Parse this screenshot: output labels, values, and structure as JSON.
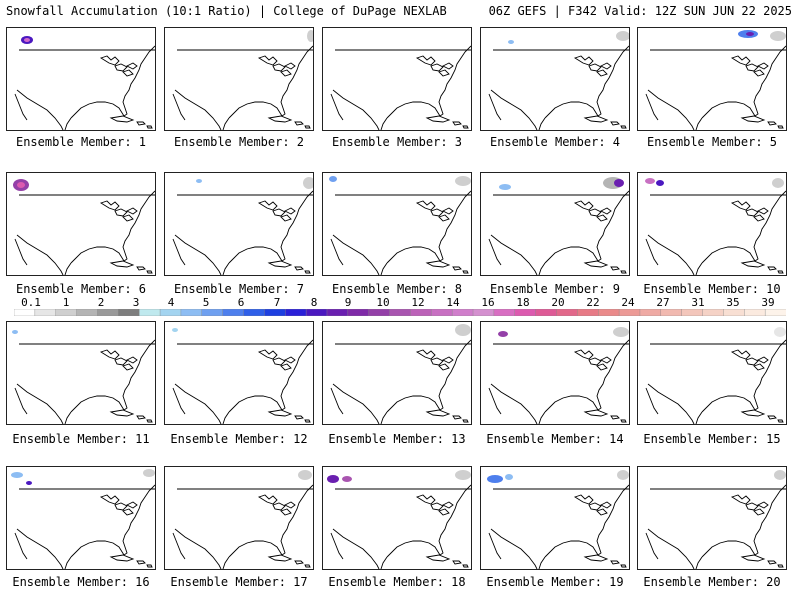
{
  "header": {
    "left": "Snowfall Accumulation (10:1 Ratio) | College of DuPage NEXLAB",
    "right": "06Z GEFS | F342 Valid: 12Z SUN JUN 22 2025"
  },
  "colorbar": {
    "labels": [
      "0.1",
      "1",
      "2",
      "3",
      "4",
      "5",
      "6",
      "7",
      "8",
      "9",
      "10",
      "12",
      "14",
      "16",
      "18",
      "20",
      "22",
      "24",
      "27",
      "31",
      "35",
      "39"
    ],
    "colors": [
      "#ffffff",
      "#e6e6e6",
      "#cfcfcf",
      "#b4b4b4",
      "#9a9a9a",
      "#7e7e7e",
      "#bfe9ee",
      "#a3d4f0",
      "#8dbdf3",
      "#6fa0f0",
      "#4e7fed",
      "#2f5fe8",
      "#1e3fe0",
      "#2b20d8",
      "#4b18c0",
      "#6a1fb0",
      "#7f2aa8",
      "#9440a8",
      "#a955b0",
      "#bc62b8",
      "#c870c2",
      "#d07ecb",
      "#d490cf",
      "#d86ec2",
      "#dc5aaf",
      "#de5a96",
      "#e2688a",
      "#e77a86",
      "#ea8a8a",
      "#ec9a96",
      "#efaaa4",
      "#f1b9b0",
      "#f3c6bb",
      "#f5d2c6",
      "#f8dfd3",
      "#fbeadf",
      "#fdf3ea"
    ]
  },
  "members": [
    {
      "caption": "Ensemble Member: 1"
    },
    {
      "caption": "Ensemble Member: 2"
    },
    {
      "caption": "Ensemble Member: 3"
    },
    {
      "caption": "Ensemble Member: 4"
    },
    {
      "caption": "Ensemble Member: 5"
    },
    {
      "caption": "Ensemble Member: 6"
    },
    {
      "caption": "Ensemble Member: 7"
    },
    {
      "caption": "Ensemble Member: 8"
    },
    {
      "caption": "Ensemble Member: 9"
    },
    {
      "caption": "Ensemble Member: 10"
    },
    {
      "caption": "Ensemble Member: 11"
    },
    {
      "caption": "Ensemble Member: 12"
    },
    {
      "caption": "Ensemble Member: 13"
    },
    {
      "caption": "Ensemble Member: 14"
    },
    {
      "caption": "Ensemble Member: 15"
    },
    {
      "caption": "Ensemble Member: 16"
    },
    {
      "caption": "Ensemble Member: 17"
    },
    {
      "caption": "Ensemble Member: 18"
    },
    {
      "caption": "Ensemble Member: 19"
    },
    {
      "caption": "Ensemble Member: 20"
    }
  ]
}
